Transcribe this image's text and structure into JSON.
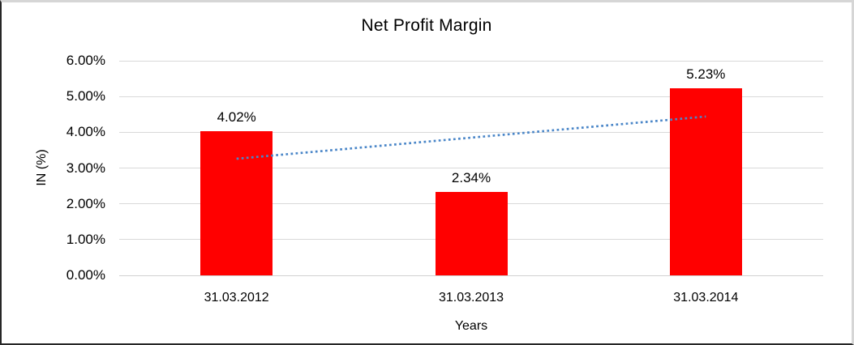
{
  "chart_data": {
    "type": "bar",
    "title": "Net Profit Margin",
    "xlabel": "Years",
    "ylabel": "IN (%)",
    "categories": [
      "31.03.2012",
      "31.03.2013",
      "31.03.2014"
    ],
    "values": [
      4.02,
      2.34,
      5.23
    ],
    "value_labels": [
      "4.02%",
      "2.34%",
      "5.23%"
    ],
    "ylim": [
      0,
      6
    ],
    "y_ticks": [
      {
        "value": 6,
        "label": "6.00%"
      },
      {
        "value": 5,
        "label": "5.00%"
      },
      {
        "value": 4,
        "label": "4.00%"
      },
      {
        "value": 3,
        "label": "3.00%"
      },
      {
        "value": 2,
        "label": "2.00%"
      },
      {
        "value": 1,
        "label": "1.00%"
      },
      {
        "value": 0,
        "label": "0.00%"
      }
    ],
    "grid": "horizontal",
    "legend": "none",
    "bar_color": "#ff0000",
    "gridline_color": "#d9d9d9",
    "trendline": {
      "type": "linear",
      "style": "dotted",
      "color": "#4a86c8",
      "start_value": 3.26,
      "end_value": 4.44,
      "start_category_index": 0,
      "end_category_index": 2
    }
  }
}
